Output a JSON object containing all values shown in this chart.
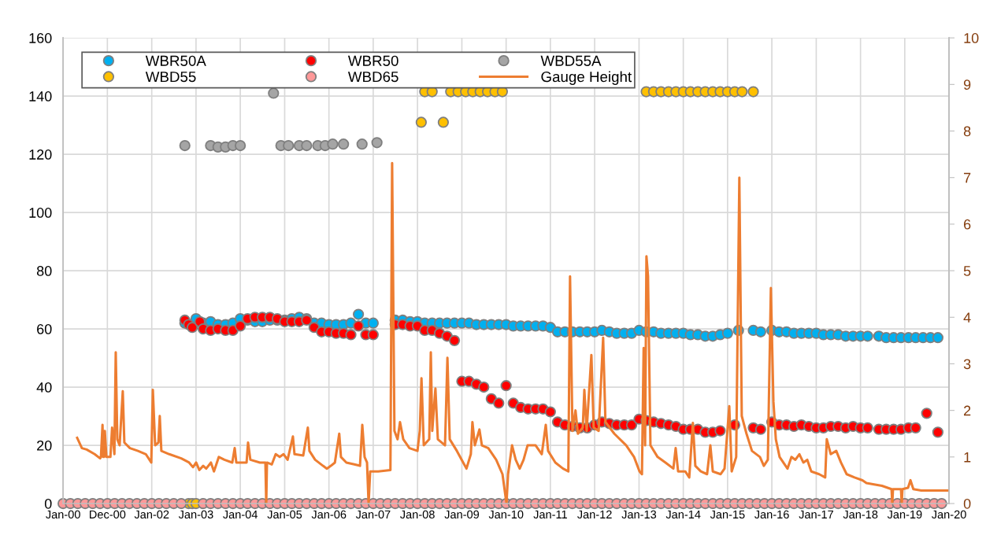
{
  "chart_data": {
    "type": "scatter",
    "marker": "circle",
    "grid": true,
    "legend": "top left",
    "xlim": [
      "2000-01-01",
      "2020-01-01"
    ],
    "xticks": [
      {
        "value": "2000-01-01",
        "label": "Jan-00"
      },
      {
        "value": "2000-12-31",
        "label": "Dec-00"
      },
      {
        "value": "2002-01-01",
        "label": "Jan-02"
      },
      {
        "value": "2003-01-01",
        "label": "Jan-03"
      },
      {
        "value": "2004-01-01",
        "label": "Jan-04"
      },
      {
        "value": "2005-01-01",
        "label": "Jan-05"
      },
      {
        "value": "2006-01-01",
        "label": "Jan-06"
      },
      {
        "value": "2007-01-01",
        "label": "Jan-07"
      },
      {
        "value": "2008-01-01",
        "label": "Jan-08"
      },
      {
        "value": "2009-01-01",
        "label": "Jan-09"
      },
      {
        "value": "2010-01-01",
        "label": "Jan-10"
      },
      {
        "value": "2011-01-01",
        "label": "Jan-11"
      },
      {
        "value": "2012-01-01",
        "label": "Jan-12"
      },
      {
        "value": "2013-01-01",
        "label": "Jan-13"
      },
      {
        "value": "2014-01-01",
        "label": "Jan-14"
      },
      {
        "value": "2015-01-01",
        "label": "Jan-15"
      },
      {
        "value": "2016-01-01",
        "label": "Jan-16"
      },
      {
        "value": "2017-01-01",
        "label": "Jan-17"
      },
      {
        "value": "2018-01-01",
        "label": "Jan-18"
      },
      {
        "value": "2019-01-01",
        "label": "Jan-19"
      },
      {
        "value": "2020-01-01",
        "label": "Jan-20"
      }
    ],
    "ylim": [
      0,
      160
    ],
    "yticks": [
      0,
      20,
      40,
      60,
      80,
      100,
      120,
      140,
      160
    ],
    "y2lim": [
      0,
      10
    ],
    "y2ticks": [
      0,
      1,
      2,
      3,
      4,
      5,
      6,
      7,
      8,
      9,
      10
    ],
    "series": [
      {
        "name": "WBR50A",
        "color": "#00b0f0",
        "x": [
          "2002-10",
          "2003-01",
          "2003-03",
          "2003-05",
          "2003-07",
          "2003-09",
          "2003-11",
          "2004-01",
          "2004-03",
          "2004-05",
          "2004-07",
          "2004-09",
          "2004-11",
          "2005-01",
          "2005-03",
          "2005-05",
          "2005-07",
          "2005-09",
          "2005-11",
          "2006-01",
          "2006-03",
          "2006-05",
          "2006-07",
          "2006-09",
          "2006-11",
          "2007-01",
          "2007-07",
          "2007-09",
          "2007-11",
          "2008-01",
          "2008-03",
          "2008-05",
          "2008-07",
          "2008-09",
          "2008-11",
          "2009-01",
          "2009-03",
          "2009-05",
          "2009-07",
          "2009-09",
          "2009-11",
          "2010-01",
          "2010-03",
          "2010-05",
          "2010-07",
          "2010-09",
          "2010-11",
          "2011-01",
          "2011-03",
          "2011-05",
          "2011-07",
          "2011-09",
          "2011-11",
          "2012-01",
          "2012-03",
          "2012-05",
          "2012-07",
          "2012-09",
          "2012-11",
          "2013-01",
          "2013-03",
          "2013-05",
          "2013-07",
          "2013-09",
          "2013-11",
          "2014-01",
          "2014-03",
          "2014-05",
          "2014-07",
          "2014-09",
          "2014-11",
          "2015-01",
          "2015-04",
          "2015-08",
          "2015-10",
          "2016-01",
          "2016-03",
          "2016-05",
          "2016-07",
          "2016-09",
          "2016-11",
          "2017-01",
          "2017-03",
          "2017-05",
          "2017-07",
          "2017-09",
          "2017-11",
          "2018-01",
          "2018-03",
          "2018-06",
          "2018-08",
          "2018-10",
          "2018-12",
          "2019-02",
          "2019-04",
          "2019-06",
          "2019-08",
          "2019-10"
        ],
        "values": [
          62,
          63.5,
          62,
          62.5,
          61.5,
          61.5,
          62,
          63.5,
          63,
          62.5,
          62.5,
          63,
          63,
          63,
          63.5,
          64,
          63.5,
          62,
          62,
          61.5,
          61.5,
          61.5,
          62,
          65,
          62,
          62,
          63,
          63,
          62.5,
          62.5,
          62,
          62,
          62,
          62,
          62,
          62,
          62,
          61.5,
          61.5,
          61.5,
          61.5,
          61.5,
          61,
          61,
          61,
          61,
          61,
          60.5,
          59,
          59,
          59,
          59,
          59,
          59,
          59.5,
          59,
          58.5,
          58.5,
          58.5,
          59.5,
          59,
          59,
          58.5,
          58.5,
          58.5,
          58.5,
          58,
          58,
          57.5,
          57.5,
          58,
          58.5,
          59.5,
          59.5,
          59,
          59.5,
          59,
          59,
          58.5,
          58.5,
          58.5,
          58.5,
          58,
          58,
          58,
          57.5,
          57.5,
          57.5,
          57.5,
          57.5,
          57,
          57,
          57,
          57,
          57,
          57,
          57,
          57
        ]
      },
      {
        "name": "WBR50",
        "color": "#ff0000",
        "x": [
          "2002-10",
          "2002-11",
          "2002-12",
          "2003-02",
          "2003-03",
          "2003-05",
          "2003-07",
          "2003-09",
          "2003-11",
          "2004-01",
          "2004-03",
          "2004-05",
          "2004-07",
          "2004-09",
          "2004-11",
          "2005-01",
          "2005-03",
          "2005-05",
          "2005-07",
          "2005-09",
          "2005-11",
          "2006-01",
          "2006-03",
          "2006-05",
          "2006-07",
          "2006-09",
          "2006-11",
          "2007-01",
          "2007-07",
          "2007-09",
          "2007-11",
          "2008-01",
          "2008-03",
          "2008-05",
          "2008-07",
          "2008-09",
          "2008-11",
          "2009-01",
          "2009-03",
          "2009-05",
          "2009-07",
          "2009-09",
          "2009-11",
          "2010-01",
          "2010-03",
          "2010-05",
          "2010-07",
          "2010-09",
          "2010-11",
          "2011-01",
          "2011-03",
          "2011-05",
          "2011-07",
          "2011-09",
          "2011-11",
          "2012-01",
          "2012-03",
          "2012-05",
          "2012-07",
          "2012-09",
          "2012-11",
          "2013-01",
          "2013-03",
          "2013-05",
          "2013-07",
          "2013-09",
          "2013-11",
          "2014-01",
          "2014-03",
          "2014-05",
          "2014-07",
          "2014-09",
          "2014-11",
          "2015-03",
          "2015-08",
          "2015-10",
          "2016-01",
          "2016-03",
          "2016-05",
          "2016-07",
          "2016-09",
          "2016-11",
          "2017-01",
          "2017-03",
          "2017-05",
          "2017-07",
          "2017-09",
          "2017-11",
          "2018-01",
          "2018-03",
          "2018-06",
          "2018-08",
          "2018-10",
          "2018-12",
          "2019-02",
          "2019-04",
          "2019-07",
          "2019-10"
        ],
        "values": [
          63,
          61.5,
          60.5,
          62.5,
          60,
          59.5,
          60,
          59.5,
          59.5,
          61,
          63.5,
          64,
          64,
          64,
          63.5,
          62.5,
          62.5,
          62.5,
          63,
          60.5,
          59,
          59,
          58.5,
          58.5,
          58,
          61,
          58,
          58,
          61.5,
          61.5,
          61,
          61,
          59.5,
          59.5,
          58.5,
          57.5,
          56,
          42,
          42,
          41,
          40,
          36,
          34.5,
          40.5,
          34.5,
          33,
          32.5,
          32.5,
          32.5,
          31.5,
          28,
          27,
          26.5,
          26,
          26,
          27,
          28,
          27.5,
          27,
          27,
          27,
          29,
          28.5,
          28,
          27.5,
          27,
          26.5,
          25.5,
          25.5,
          25.5,
          24.5,
          24.5,
          25,
          27,
          26,
          25.5,
          28,
          27,
          27,
          26.5,
          27,
          26.5,
          26,
          26,
          26.5,
          26.5,
          26,
          26.5,
          26,
          26,
          25.5,
          25.5,
          25.5,
          25.5,
          26,
          26,
          31,
          24.5
        ]
      },
      {
        "name": "WBD55A",
        "color": "#a5a5a5",
        "x": [
          "2002-10",
          "2003-05",
          "2003-07",
          "2003-09",
          "2003-11",
          "2004-01",
          "2004-10",
          "2004-12",
          "2005-02",
          "2005-05",
          "2005-07",
          "2005-10",
          "2005-12",
          "2006-02",
          "2006-05",
          "2006-10",
          "2007-02"
        ],
        "values": [
          123,
          123,
          122.5,
          122.5,
          123,
          123,
          141,
          123,
          123,
          123,
          123,
          123,
          123,
          123.5,
          123.5,
          123.5,
          124
        ]
      },
      {
        "name": "WBD55",
        "color": "#ffc000",
        "x": [
          "2002-11",
          "2002-12",
          "2003-01",
          "2008-02",
          "2008-03",
          "2008-05",
          "2008-08",
          "2008-10",
          "2008-12",
          "2009-02",
          "2009-04",
          "2009-06",
          "2009-08",
          "2009-10",
          "2009-12",
          "2013-03",
          "2013-05",
          "2013-07",
          "2013-09",
          "2013-11",
          "2014-01",
          "2014-03",
          "2014-05",
          "2014-07",
          "2014-09",
          "2014-11",
          "2015-01",
          "2015-03",
          "2015-05",
          "2015-08"
        ],
        "values": [
          0,
          0,
          0,
          131,
          141.5,
          141.5,
          131,
          141.5,
          141.5,
          141.5,
          141.5,
          141.5,
          141.5,
          141.5,
          141.5,
          141.5,
          141.5,
          141.5,
          141.5,
          141.5,
          141.5,
          141.5,
          141.5,
          141.5,
          141.5,
          141.5,
          141.5,
          141.5,
          141.5,
          141.5
        ]
      },
      {
        "name": "WBD65",
        "color": "#ff9999",
        "x": [
          "2000-01",
          "2000-03",
          "2000-05",
          "2000-07",
          "2000-09",
          "2000-11",
          "2001-01",
          "2001-03",
          "2001-05",
          "2001-07",
          "2001-09",
          "2001-11",
          "2002-01",
          "2002-03",
          "2002-05",
          "2002-07",
          "2002-09",
          "2003-03",
          "2003-05",
          "2003-07",
          "2003-09",
          "2003-11",
          "2004-01",
          "2004-03",
          "2004-05",
          "2004-07",
          "2004-09",
          "2004-11",
          "2005-01",
          "2005-03",
          "2005-05",
          "2005-07",
          "2005-09",
          "2005-11",
          "2006-01",
          "2006-03",
          "2006-05",
          "2006-07",
          "2006-09",
          "2006-11",
          "2007-01",
          "2007-03",
          "2007-05",
          "2007-07",
          "2007-09",
          "2007-11",
          "2008-01",
          "2008-03",
          "2008-05",
          "2008-07",
          "2008-09",
          "2008-11",
          "2009-01",
          "2009-03",
          "2009-05",
          "2009-07",
          "2009-09",
          "2009-11",
          "2010-01",
          "2010-03",
          "2010-05",
          "2010-07",
          "2010-09",
          "2010-11",
          "2011-01",
          "2011-03",
          "2011-05",
          "2011-07",
          "2011-09",
          "2011-11",
          "2012-01",
          "2012-03",
          "2012-05",
          "2012-07",
          "2012-09",
          "2012-11",
          "2013-01",
          "2013-03",
          "2013-05",
          "2013-07",
          "2013-09",
          "2013-11",
          "2014-01",
          "2014-03",
          "2014-05",
          "2014-07",
          "2014-09",
          "2014-11",
          "2015-01",
          "2015-03",
          "2015-05",
          "2015-07",
          "2015-09",
          "2015-11",
          "2016-01",
          "2016-03",
          "2016-05",
          "2016-07",
          "2016-09",
          "2016-11",
          "2017-01",
          "2017-03",
          "2017-05",
          "2017-07",
          "2017-09",
          "2017-11",
          "2018-01",
          "2018-03",
          "2018-05",
          "2018-07",
          "2018-09",
          "2018-11",
          "2019-01",
          "2019-03",
          "2019-05",
          "2019-07",
          "2019-09",
          "2019-11"
        ],
        "values": [
          0,
          0,
          0,
          0,
          0,
          0,
          0,
          0,
          0,
          0,
          0,
          0,
          0,
          0,
          0,
          0,
          0,
          0,
          0,
          0,
          0,
          0,
          0,
          0,
          0,
          0,
          0,
          0,
          0,
          0,
          0,
          0,
          0,
          0,
          0,
          0,
          0,
          0,
          0,
          0,
          0,
          0,
          0,
          0,
          0,
          0,
          0,
          0,
          0,
          0,
          0,
          0,
          0,
          0,
          0,
          0,
          0,
          0,
          0,
          0,
          0,
          0,
          0,
          0,
          0,
          0,
          0,
          0,
          0,
          0,
          0,
          0,
          0,
          0,
          0,
          0,
          0,
          0,
          0,
          0,
          0,
          0,
          0,
          0,
          0,
          0,
          0,
          0,
          0,
          0,
          0,
          0,
          0,
          0,
          0,
          0,
          0,
          0,
          0,
          0,
          0,
          0,
          0,
          0,
          0,
          0,
          0,
          0,
          0,
          0,
          0,
          0,
          0,
          0,
          0,
          0,
          0,
          0
        ]
      },
      {
        "name": "Gauge Height",
        "type": "line",
        "marker": "none",
        "axis": "y2",
        "color": "#ed7d31",
        "x": [
          "2000-04-26",
          "2000-06-04",
          "2000-07-13",
          "2000-09-17",
          "2000-11-01",
          "2000-11-08",
          "2000-11-21",
          "2000-11-27",
          "2000-12-03",
          "2000-12-10",
          "2000-12-23",
          "2001-01-25",
          "2001-02-08",
          "2001-02-27",
          "2001-03-10",
          "2001-03-23",
          "2001-04-11",
          "2001-05-07",
          "2001-05-20",
          "2001-07-05",
          "2001-09-09",
          "2001-11-13",
          "2001-12-28",
          "2002-01-10",
          "2002-01-29",
          "2002-02-25",
          "2002-03-08",
          "2002-03-21",
          "2002-05-25",
          "2002-09-01",
          "2002-11-05",
          "2002-12-07",
          "2003-01-02",
          "2003-01-28",
          "2003-03-01",
          "2003-03-26",
          "2003-05-04",
          "2003-05-29",
          "2003-07-08",
          "2003-08-23",
          "2003-10-27",
          "2003-11-16",
          "2003-11-29",
          "2004-02-22",
          "2004-03-05",
          "2004-03-24",
          "2004-06-11",
          "2004-07-26",
          "2004-08-02",
          "2004-08-08",
          "2004-09-17",
          "2004-10-19",
          "2004-11-21",
          "2004-12-23",
          "2005-01-25",
          "2005-03-10",
          "2005-03-23",
          "2005-06-03",
          "2005-07-11",
          "2005-07-24",
          "2005-09-09",
          "2005-11-13",
          "2005-12-15",
          "2006-01-17",
          "2006-02-19",
          "2006-03-27",
          "2006-04-10",
          "2006-05-25",
          "2006-07-29",
          "2006-09-14",
          "2006-10-03",
          "2006-10-22",
          "2006-11-11",
          "2006-11-24",
          "2006-12-07",
          "2007-02-11",
          "2007-05-23",
          "2007-06-06",
          "2007-06-25",
          "2007-07-21",
          "2007-08-10",
          "2007-09-06",
          "2007-10-27",
          "2008-01-01",
          "2008-01-20",
          "2008-02-03",
          "2008-02-22",
          "2008-04-07",
          "2008-04-20",
          "2008-05-02",
          "2008-05-28",
          "2008-06-17",
          "2008-08-15",
          "2008-09-04",
          "2008-09-23",
          "2008-11-21",
          "2009-01-12",
          "2009-02-08",
          "2009-03-16",
          "2009-03-29",
          "2009-04-18",
          "2009-05-26",
          "2009-06-15",
          "2009-08-07",
          "2009-10-11",
          "2009-12-02",
          "2010-01-04",
          "2010-01-17",
          "2010-02-19",
          "2010-03-21",
          "2010-04-23",
          "2010-05-25",
          "2010-06-27",
          "2010-09-01",
          "2010-10-22",
          "2010-11-24",
          "2010-12-13",
          "2011-02-11",
          "2011-04-15",
          "2011-05-29",
          "2011-06-12",
          "2011-07-02",
          "2011-07-27",
          "2011-08-16",
          "2011-09-25",
          "2011-10-08",
          "2011-10-27",
          "2011-12-05",
          "2011-12-24",
          "2012-02-03",
          "2012-03-11",
          "2012-03-30",
          "2012-06-11",
          "2012-09-17",
          "2012-11-21",
          "2013-01-05",
          "2013-01-25",
          "2013-02-08",
          "2013-02-20",
          "2013-03-03",
          "2013-03-16",
          "2013-04-05",
          "2013-06-03",
          "2013-08-07",
          "2013-10-11",
          "2013-10-30",
          "2013-11-19",
          "2014-01-17",
          "2014-02-19",
          "2014-03-21",
          "2014-04-10",
          "2014-05-25",
          "2014-07-16",
          "2014-08-12",
          "2014-09-01",
          "2014-11-05",
          "2014-12-07",
          "2015-01-15",
          "2015-02-04",
          "2015-03-13",
          "2015-04-08",
          "2015-04-28",
          "2015-06-06",
          "2015-07-21",
          "2015-09-25",
          "2015-10-27",
          "2015-11-29",
          "2015-12-24",
          "2016-01-14",
          "2016-02-03",
          "2016-03-05",
          "2016-05-09",
          "2016-06-11",
          "2016-07-13",
          "2016-08-15",
          "2016-09-17",
          "2016-10-19",
          "2016-11-21",
          "2017-01-25",
          "2017-03-16",
          "2017-03-29",
          "2017-05-01",
          "2017-06-15",
          "2017-07-24",
          "2017-09-09",
          "2017-11-13",
          "2018-01-17",
          "2018-02-19",
          "2018-04-23",
          "2018-06-27",
          "2018-09-14",
          "2018-09-20",
          "2018-09-26",
          "2018-12-01",
          "2018-12-07",
          "2018-12-13",
          "2019-01-28",
          "2019-02-17",
          "2019-03-13",
          "2019-05-17",
          "2019-09-25",
          "2020-01-01"
        ],
        "values": [
          1.41,
          1.19,
          1.16,
          1.06,
          0.97,
          1.0,
          1.69,
          1.0,
          1.0,
          1.56,
          1.0,
          1.0,
          1.63,
          1.06,
          3.25,
          1.38,
          1.25,
          2.41,
          1.31,
          1.19,
          1.13,
          1.06,
          0.88,
          2.44,
          1.25,
          1.31,
          1.88,
          1.13,
          1.06,
          0.97,
          0.88,
          0.78,
          0.88,
          0.72,
          0.81,
          0.75,
          0.88,
          0.69,
          1.0,
          0.94,
          0.88,
          1.19,
          0.88,
          0.88,
          1.31,
          0.94,
          0.88,
          0.88,
          0,
          0.88,
          0.84,
          1.06,
          1.0,
          1.06,
          0.94,
          1.44,
          1.06,
          1.03,
          1.63,
          1.13,
          0.94,
          0.81,
          0.75,
          0.81,
          0.88,
          1.5,
          1.0,
          0.88,
          0.84,
          0.81,
          1.69,
          1.0,
          0.88,
          0,
          0.69,
          0.69,
          0.72,
          7.31,
          1.56,
          1.38,
          1.75,
          1.38,
          1.19,
          1.13,
          1.56,
          2.69,
          1.25,
          1.38,
          3.25,
          1.56,
          2.47,
          1.38,
          1.25,
          3.13,
          1.38,
          1.13,
          0.88,
          0.75,
          1.06,
          1.75,
          1.25,
          1.59,
          1.25,
          1.19,
          0.94,
          0.63,
          0,
          0.63,
          1.25,
          0.94,
          0.75,
          0.94,
          1.25,
          1.25,
          1.06,
          1.69,
          1.13,
          0.88,
          0.75,
          0.69,
          4.88,
          1.56,
          2.0,
          1.5,
          1.63,
          2.44,
          1.56,
          3.19,
          1.63,
          1.56,
          3.56,
          1.75,
          1.5,
          1.25,
          1.0,
          0.69,
          0.63,
          3.34,
          1.25,
          5.31,
          4.88,
          1.25,
          1.0,
          0.88,
          0.75,
          1.19,
          0.69,
          0.69,
          0.56,
          1.73,
          0.81,
          0.69,
          0.63,
          1.25,
          0.69,
          0.63,
          0.75,
          2.09,
          0.69,
          1.0,
          7.0,
          1.88,
          1.5,
          1.13,
          1.0,
          0.81,
          0.94,
          4.63,
          2.19,
          1.38,
          1.0,
          0.75,
          1.0,
          0.94,
          1.06,
          0.88,
          0.94,
          0.69,
          0.63,
          0.56,
          1.38,
          1.06,
          1.13,
          0.88,
          0.63,
          0.56,
          0.5,
          0.44,
          0.41,
          0.38,
          0.31,
          0,
          0.31,
          0.31,
          0,
          0.31,
          0.34,
          0.5,
          0.31,
          0.28,
          0.28,
          0.28
        ]
      }
    ]
  }
}
